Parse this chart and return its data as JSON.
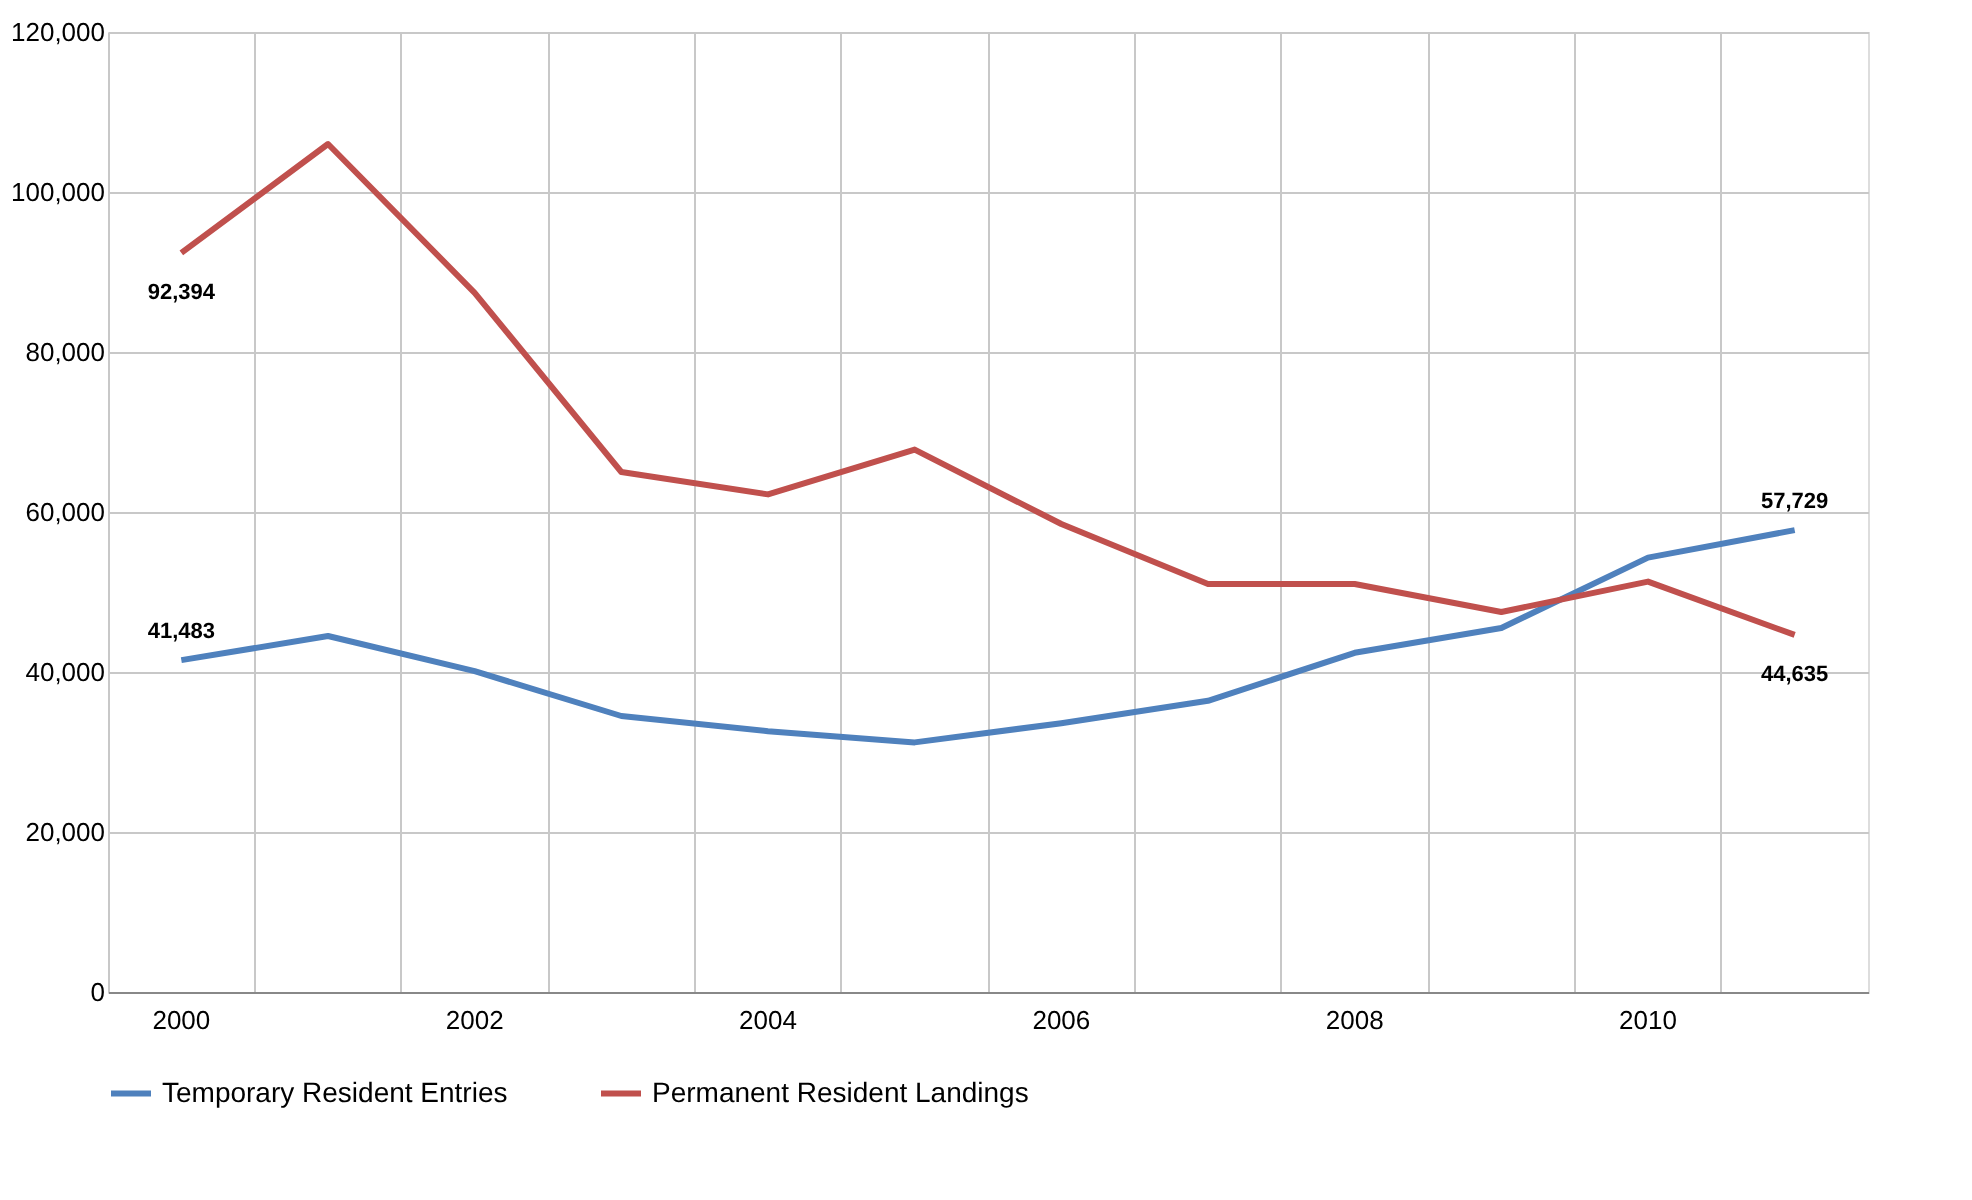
{
  "chart_data": {
    "type": "line",
    "categories": [
      "2000",
      null,
      "2002",
      null,
      "2004",
      null,
      "2006",
      null,
      "2008",
      null,
      "2010",
      null
    ],
    "ylim": [
      0,
      120000
    ],
    "yticks": [
      {
        "value": 0,
        "label": "0"
      },
      {
        "value": 20000,
        "label": "20,000"
      },
      {
        "value": 40000,
        "label": "40,000"
      },
      {
        "value": 60000,
        "label": "60,000"
      },
      {
        "value": 80000,
        "label": "80,000"
      },
      {
        "value": 100000,
        "label": "100,000"
      },
      {
        "value": 120000,
        "label": "120,000"
      }
    ],
    "grid": true,
    "legend": "bottom",
    "marker": "none",
    "line_style": "solid",
    "series": [
      {
        "name": "Temporary Resident Entries",
        "color": "#4f81bd",
        "values": [
          41483,
          44500,
          40100,
          34500,
          32600,
          31200,
          33600,
          36400,
          42400,
          45500,
          54300,
          57729
        ],
        "value_labels": [
          "41,483",
          null,
          null,
          null,
          null,
          null,
          null,
          null,
          null,
          null,
          null,
          "57,729"
        ]
      },
      {
        "name": "Permanent Resident Landings",
        "color": "#c0504d",
        "values": [
          92394,
          106000,
          87400,
          65000,
          62200,
          67800,
          58500,
          51000,
          51000,
          47500,
          51300,
          44635
        ],
        "value_labels": [
          "92,394",
          null,
          null,
          null,
          null,
          null,
          null,
          null,
          null,
          null,
          null,
          "44,635"
        ]
      }
    ]
  }
}
